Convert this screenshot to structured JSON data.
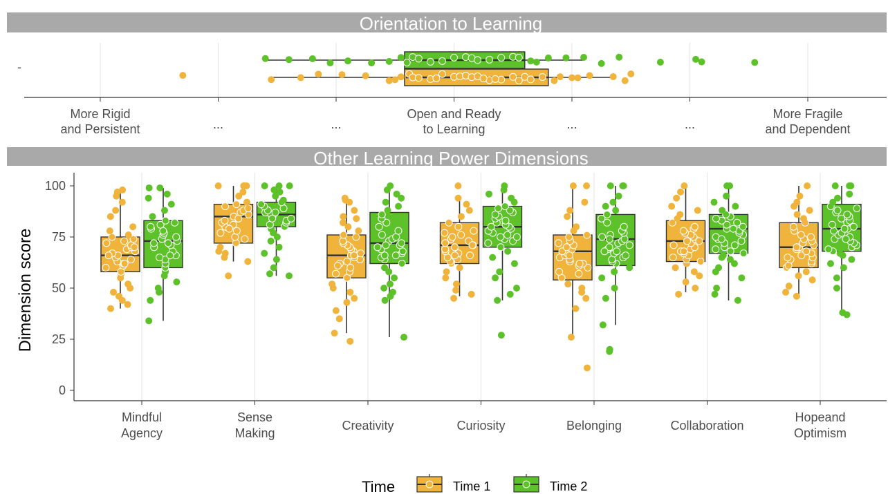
{
  "colors": {
    "time1": "#F0B43C",
    "time2": "#5DC22A",
    "strip": "#A9A9A9"
  },
  "chart_data": [
    {
      "type": "boxplot",
      "title": "Orientation to Learning",
      "orientation": "horizontal",
      "y_tick_label": "-",
      "x_tick_labels": [
        "More Rigid\nand Persistent",
        "...",
        "...",
        "Open and Ready\nto Learning",
        "...",
        "...",
        "More Fragile\nand Dependent"
      ],
      "x_ticks": [
        -3,
        -2,
        -1,
        0,
        1,
        2,
        3
      ],
      "xlim": [
        -3.7,
        3.6
      ],
      "series": [
        {
          "name": "Time 1",
          "box": {
            "min": -1.55,
            "q1": -0.42,
            "median": -0.4,
            "q3": 0.8,
            "max": 1.35
          },
          "points": [
            -2.3,
            -1.55,
            -1.3,
            -1.15,
            -0.95,
            -0.75,
            -0.55,
            -0.45,
            -0.38,
            -0.35,
            -0.3,
            -0.2,
            -0.15,
            -0.1,
            0.0,
            0.05,
            0.1,
            0.15,
            0.2,
            0.3,
            0.4,
            0.5,
            0.55,
            0.6,
            0.65,
            0.75,
            0.85,
            0.9,
            1.0,
            1.05,
            1.15,
            1.35,
            1.45,
            1.5,
            -0.5,
            0.25,
            0.35
          ]
        },
        {
          "name": "Time 2",
          "box": {
            "min": -1.6,
            "q1": -0.42,
            "median": -0.38,
            "q3": 0.6,
            "max": 1.1
          },
          "points": [
            -1.6,
            -1.4,
            -1.2,
            -1.05,
            -0.9,
            -0.7,
            -0.55,
            -0.45,
            -0.4,
            -0.35,
            -0.3,
            -0.2,
            -0.1,
            0.0,
            0.1,
            0.15,
            0.2,
            0.3,
            0.4,
            0.5,
            0.55,
            0.65,
            0.7,
            0.8,
            0.95,
            1.1,
            1.25,
            1.4,
            1.75,
            2.05,
            2.1,
            2.55
          ]
        }
      ]
    },
    {
      "type": "boxplot",
      "title": "Other Learning Power Dimensions",
      "ylabel": "Dimension score",
      "yticks": [
        0,
        25,
        50,
        75,
        100
      ],
      "ylim": [
        -3,
        104
      ],
      "categories": [
        "Mindful\nAgency",
        "Sense\nMaking",
        "Creativity",
        "Curiosity",
        "Belonging",
        "Collaboration",
        "Hopeand\nOptimism"
      ],
      "legend": {
        "title": "Time",
        "position": "bottom",
        "entries": [
          "Time 1",
          "Time 2"
        ]
      },
      "series": [
        {
          "name": "Time 1",
          "boxes": [
            {
              "min": 40,
              "q1": 58,
              "median": 66,
              "q3": 75,
              "max": 97
            },
            {
              "min": 63,
              "q1": 72,
              "median": 85,
              "q3": 91,
              "max": 100
            },
            {
              "min": 28,
              "q1": 55,
              "median": 66,
              "q3": 76,
              "max": 94
            },
            {
              "min": 46,
              "q1": 62,
              "median": 71,
              "q3": 82,
              "max": 94
            },
            {
              "min": 26,
              "q1": 54,
              "median": 68,
              "q3": 76,
              "max": 100
            },
            {
              "min": 48,
              "q1": 63,
              "median": 73,
              "q3": 83,
              "max": 100
            },
            {
              "min": 47,
              "q1": 60,
              "median": 70,
              "q3": 82,
              "max": 100
            }
          ],
          "outliers": [
            [],
            [],
            [
              24
            ],
            [],
            [
              11
            ],
            [],
            []
          ],
          "points": [
            [
              40,
              42,
              44,
              46,
              48,
              50,
              52,
              55,
              57,
              58,
              60,
              61,
              62,
              63,
              64,
              65,
              66,
              67,
              68,
              69,
              70,
              71,
              72,
              73,
              74,
              75,
              76,
              78,
              80,
              85,
              88,
              92,
              95,
              97,
              98,
              66,
              62,
              70
            ],
            [
              56,
              63,
              65,
              67,
              68,
              70,
              72,
              74,
              75,
              77,
              78,
              80,
              81,
              82,
              83,
              84,
              85,
              86,
              87,
              88,
              89,
              90,
              91,
              92,
              95,
              97,
              100,
              100,
              100,
              100,
              84,
              79
            ],
            [
              24,
              28,
              35,
              39,
              43,
              45,
              48,
              50,
              52,
              55,
              57,
              58,
              60,
              62,
              63,
              64,
              65,
              66,
              67,
              68,
              69,
              70,
              71,
              72,
              73,
              75,
              76,
              78,
              80,
              82,
              84,
              85,
              88,
              92,
              93,
              94,
              66,
              61
            ],
            [
              45,
              47,
              49,
              52,
              55,
              58,
              60,
              62,
              63,
              64,
              65,
              66,
              67,
              68,
              69,
              70,
              71,
              72,
              73,
              74,
              75,
              76,
              77,
              78,
              80,
              82,
              85,
              88,
              91,
              94,
              100,
              71,
              66
            ],
            [
              11,
              26,
              40,
              45,
              48,
              50,
              52,
              55,
              57,
              58,
              60,
              61,
              62,
              63,
              64,
              65,
              66,
              67,
              68,
              69,
              70,
              71,
              72,
              73,
              75,
              76,
              78,
              80,
              85,
              88,
              92,
              100,
              100,
              66,
              62
            ],
            [
              47,
              50,
              53,
              56,
              58,
              60,
              62,
              63,
              64,
              65,
              66,
              67,
              68,
              69,
              70,
              71,
              72,
              73,
              74,
              75,
              76,
              77,
              78,
              79,
              80,
              82,
              84,
              86,
              88,
              90,
              94,
              97,
              100,
              73,
              68
            ],
            [
              46,
              48,
              51,
              54,
              56,
              58,
              60,
              61,
              62,
              63,
              64,
              65,
              66,
              67,
              68,
              69,
              70,
              71,
              72,
              73,
              74,
              75,
              76,
              78,
              80,
              82,
              84,
              86,
              88,
              90,
              92,
              95,
              100,
              70,
              65
            ]
          ]
        },
        {
          "name": "Time 2",
          "boxes": [
            {
              "min": 34,
              "q1": 60,
              "median": 73,
              "q3": 83,
              "max": 99
            },
            {
              "min": 56,
              "q1": 80,
              "median": 86,
              "q3": 92,
              "max": 100
            },
            {
              "min": 26,
              "q1": 62,
              "median": 72,
              "q3": 87,
              "max": 100
            },
            {
              "min": 44,
              "q1": 70,
              "median": 80,
              "q3": 90,
              "max": 100
            },
            {
              "min": 32,
              "q1": 61,
              "median": 74,
              "q3": 86,
              "max": 100
            },
            {
              "min": 44,
              "q1": 67,
              "median": 79,
              "q3": 86,
              "max": 100
            },
            {
              "min": 37,
              "q1": 68,
              "median": 79,
              "q3": 91,
              "max": 100
            }
          ],
          "outliers": [
            [],
            [],
            [],
            [
              27
            ],
            [
              19,
              20
            ],
            [],
            []
          ],
          "points": [
            [
              34,
              44,
              48,
              50,
              53,
              56,
              58,
              60,
              62,
              64,
              65,
              66,
              68,
              70,
              71,
              72,
              73,
              74,
              75,
              76,
              77,
              78,
              79,
              80,
              81,
              82,
              83,
              85,
              88,
              91,
              94,
              96,
              99,
              99,
              72,
              66
            ],
            [
              56,
              57,
              60,
              64,
              67,
              70,
              73,
              75,
              77,
              79,
              80,
              81,
              82,
              83,
              84,
              85,
              86,
              87,
              88,
              89,
              90,
              91,
              92,
              93,
              95,
              97,
              98,
              100,
              100,
              100,
              87,
              84
            ],
            [
              26,
              44,
              46,
              48,
              50,
              52,
              55,
              58,
              60,
              62,
              64,
              65,
              66,
              67,
              68,
              69,
              70,
              71,
              72,
              73,
              74,
              75,
              76,
              78,
              80,
              82,
              84,
              86,
              88,
              90,
              92,
              94,
              96,
              98,
              100,
              71,
              66
            ],
            [
              27,
              44,
              47,
              50,
              55,
              58,
              62,
              65,
              68,
              70,
              72,
              73,
              74,
              75,
              76,
              77,
              78,
              79,
              80,
              81,
              82,
              83,
              84,
              85,
              86,
              87,
              88,
              89,
              90,
              92,
              94,
              96,
              98,
              100,
              80,
              75
            ],
            [
              19,
              20,
              32,
              45,
              50,
              55,
              58,
              60,
              62,
              63,
              64,
              65,
              66,
              67,
              68,
              69,
              70,
              71,
              72,
              73,
              74,
              75,
              76,
              77,
              78,
              80,
              82,
              84,
              86,
              88,
              90,
              92,
              95,
              100,
              100,
              100,
              74,
              68
            ],
            [
              44,
              47,
              50,
              55,
              58,
              60,
              62,
              64,
              65,
              66,
              67,
              68,
              69,
              70,
              71,
              72,
              73,
              74,
              75,
              76,
              77,
              78,
              79,
              80,
              81,
              82,
              83,
              84,
              85,
              86,
              88,
              90,
              92,
              95,
              100,
              100,
              79,
              74
            ],
            [
              37,
              38,
              50,
              55,
              60,
              62,
              64,
              66,
              67,
              68,
              69,
              70,
              71,
              72,
              73,
              74,
              75,
              76,
              77,
              78,
              79,
              80,
              81,
              82,
              83,
              84,
              85,
              86,
              87,
              88,
              89,
              90,
              92,
              94,
              96,
              100,
              100,
              100,
              79,
              74
            ]
          ]
        }
      ]
    }
  ]
}
